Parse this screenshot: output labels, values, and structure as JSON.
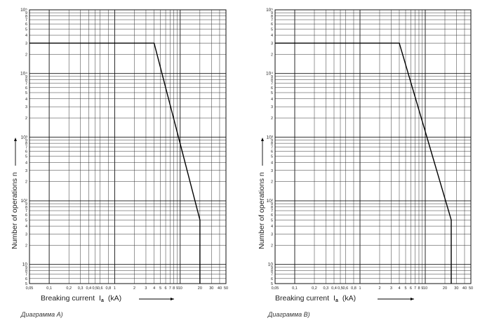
{
  "chart_data": [
    {
      "type": "line",
      "caption": "Диаграмма A)",
      "xlabel": "Breaking current",
      "xlabel_symbol": "I",
      "xlabel_subscript": "a",
      "xlabel_unit": "(kA)",
      "ylabel": "Number of operations n",
      "xscale": "log",
      "yscale": "log",
      "xlim": [
        0.05,
        50
      ],
      "ylim": [
        5,
        100000
      ],
      "grid": true,
      "xticks": [
        "0,05",
        "0,1",
        "0,2",
        "0,3",
        "0,4",
        "0,5",
        "0,6",
        "0,8",
        "1",
        "2",
        "3",
        "4",
        "5",
        "6",
        "7",
        "8",
        "9",
        "10",
        "20",
        "30",
        "40",
        "50"
      ],
      "yticks": [
        "5",
        "6",
        "7",
        "8",
        "9",
        "10",
        "2",
        "3",
        "4",
        "5",
        "6",
        "7",
        "8",
        "9",
        "10²",
        "2",
        "3",
        "4",
        "5",
        "6",
        "7",
        "8",
        "9",
        "10³",
        "2",
        "3",
        "4",
        "5",
        "6",
        "7",
        "8",
        "9",
        "10⁴",
        "2",
        "3",
        "4",
        "5",
        "6",
        "7",
        "8",
        "9",
        "10⁵"
      ],
      "series": [
        {
          "x": [
            0.05,
            4,
            20,
            20
          ],
          "y": [
            30000,
            30000,
            50,
            5
          ]
        }
      ]
    },
    {
      "type": "line",
      "caption": "Диаграмма B)",
      "xlabel": "Breaking current",
      "xlabel_symbol": "I",
      "xlabel_subscript": "a",
      "xlabel_unit": "(kA)",
      "ylabel": "Number of operations n",
      "xscale": "log",
      "yscale": "log",
      "xlim": [
        0.05,
        50
      ],
      "ylim": [
        5,
        100000
      ],
      "grid": true,
      "xticks": [
        "0,05",
        "0,1",
        "0,2",
        "0,3",
        "0,4",
        "0,5",
        "0,6",
        "0,8",
        "1",
        "2",
        "3",
        "4",
        "5",
        "6",
        "7",
        "8",
        "9",
        "10",
        "20",
        "30",
        "40",
        "50"
      ],
      "yticks": [
        "5",
        "6",
        "7",
        "8",
        "9",
        "10",
        "2",
        "3",
        "4",
        "5",
        "6",
        "7",
        "8",
        "9",
        "10²",
        "2",
        "3",
        "4",
        "5",
        "6",
        "7",
        "8",
        "9",
        "10³",
        "2",
        "3",
        "4",
        "5",
        "6",
        "7",
        "8",
        "9",
        "10⁴",
        "2",
        "3",
        "4",
        "5",
        "6",
        "7",
        "8",
        "9",
        "10⁵"
      ],
      "series": [
        {
          "x": [
            0.05,
            4,
            25,
            25
          ],
          "y": [
            30000,
            30000,
            50,
            5
          ]
        }
      ]
    }
  ]
}
